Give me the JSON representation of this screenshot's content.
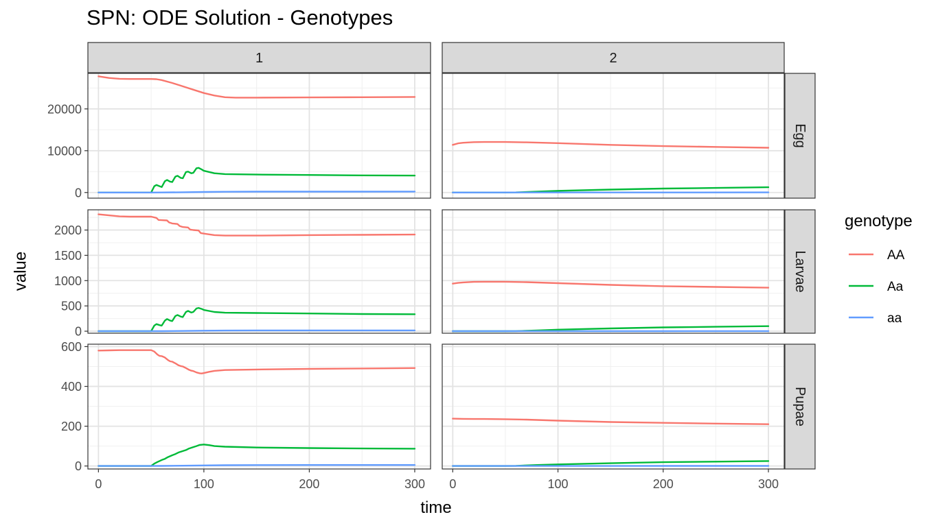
{
  "chart_data": {
    "type": "line",
    "title": "SPN: ODE Solution - Genotypes",
    "xlabel": "time",
    "ylabel": "value",
    "legend": {
      "title": "genotype",
      "position": "right",
      "entries": [
        {
          "name": "AA",
          "color": "#F8766D"
        },
        {
          "name": "Aa",
          "color": "#00BA38"
        },
        {
          "name": "aa",
          "color": "#619CFF"
        }
      ]
    },
    "facet_columns": [
      "1",
      "2"
    ],
    "facet_rows": [
      "Egg",
      "Larvae",
      "Pupae"
    ],
    "x": {
      "lim": [
        -10,
        315
      ],
      "ticks": [
        0,
        100,
        200,
        300
      ],
      "tick_labels": [
        "0",
        "100",
        "200",
        "300"
      ]
    },
    "rows": {
      "Egg": {
        "ylim": [
          -1350,
          28500
        ],
        "ticks": [
          0,
          10000,
          20000
        ],
        "tick_labels": [
          "0",
          "10000",
          "20000"
        ],
        "minor_ticks": [
          5000,
          15000,
          25000
        ]
      },
      "Larvae": {
        "ylim": [
          -40,
          2400
        ],
        "ticks": [
          0,
          500,
          1000,
          1500,
          2000
        ],
        "tick_labels": [
          "0",
          "500",
          "1000",
          "1500",
          "2000"
        ],
        "minor_ticks": [
          250,
          750,
          1250,
          1750,
          2250
        ]
      },
      "Pupae": {
        "ylim": [
          -15,
          612
        ],
        "ticks": [
          0,
          200,
          400,
          600
        ],
        "tick_labels": [
          "0",
          "200",
          "400",
          "600"
        ],
        "minor_ticks": [
          100,
          300,
          500
        ]
      }
    },
    "panels": [
      {
        "column": "1",
        "row": "Egg",
        "series": [
          {
            "name": "AA",
            "x": [
              0,
              10,
              20,
              30,
              40,
              50,
              55,
              60,
              70,
              80,
              90,
              100,
              110,
              120,
              130,
              150,
              200,
              250,
              300
            ],
            "y": [
              27800,
              27400,
              27200,
              27150,
              27150,
              27150,
              27100,
              26900,
              26200,
              25400,
              24600,
              23800,
              23200,
              22800,
              22700,
              22700,
              22750,
              22800,
              22850
            ]
          },
          {
            "name": "Aa",
            "x": [
              0,
              48,
              50,
              53,
              55,
              58,
              60,
              63,
              65,
              68,
              70,
              73,
              75,
              78,
              80,
              83,
              85,
              88,
              90,
              93,
              95,
              98,
              100,
              110,
              120,
              150,
              200,
              250,
              300
            ],
            "y": [
              0,
              0,
              0,
              1500,
              1800,
              1500,
              1300,
              2700,
              3000,
              2600,
              2500,
              3800,
              4000,
              3500,
              3400,
              4900,
              5000,
              4600,
              4700,
              5800,
              5900,
              5500,
              5200,
              4600,
              4400,
              4300,
              4200,
              4100,
              4050
            ]
          },
          {
            "name": "aa",
            "x": [
              0,
              50,
              60,
              80,
              100,
              120,
              150,
              200,
              250,
              300
            ],
            "y": [
              0,
              0,
              10,
              60,
              120,
              170,
              200,
              210,
              215,
              220
            ]
          }
        ]
      },
      {
        "column": "2",
        "row": "Egg",
        "series": [
          {
            "name": "AA",
            "x": [
              0,
              5,
              10,
              20,
              30,
              50,
              70,
              100,
              150,
              200,
              250,
              300
            ],
            "y": [
              11400,
              11750,
              11900,
              12050,
              12080,
              12080,
              12000,
              11800,
              11400,
              11100,
              10900,
              10700
            ]
          },
          {
            "name": "Aa",
            "x": [
              0,
              50,
              60,
              80,
              100,
              150,
              200,
              250,
              300
            ],
            "y": [
              0,
              0,
              20,
              200,
              400,
              700,
              950,
              1100,
              1250
            ]
          },
          {
            "name": "aa",
            "x": [
              0,
              100,
              200,
              300
            ],
            "y": [
              0,
              5,
              15,
              25
            ]
          }
        ]
      },
      {
        "column": "1",
        "row": "Larvae",
        "series": [
          {
            "name": "AA",
            "x": [
              0,
              10,
              20,
              30,
              40,
              50,
              55,
              57,
              60,
              65,
              67,
              70,
              75,
              77,
              80,
              85,
              87,
              90,
              95,
              97,
              100,
              110,
              120,
              150,
              200,
              250,
              300
            ],
            "y": [
              2310,
              2290,
              2270,
              2265,
              2265,
              2265,
              2240,
              2200,
              2195,
              2190,
              2150,
              2130,
              2120,
              2080,
              2060,
              2050,
              2010,
              2000,
              1990,
              1940,
              1930,
              1900,
              1890,
              1890,
              1900,
              1905,
              1910
            ]
          },
          {
            "name": "Aa",
            "x": [
              0,
              48,
              50,
              53,
              55,
              58,
              60,
              63,
              65,
              68,
              70,
              73,
              75,
              78,
              80,
              83,
              85,
              88,
              90,
              93,
              95,
              98,
              100,
              110,
              120,
              150,
              200,
              250,
              300
            ],
            "y": [
              0,
              0,
              0,
              110,
              140,
              120,
              110,
              210,
              240,
              210,
              200,
              300,
              320,
              290,
              280,
              380,
              400,
              370,
              380,
              450,
              460,
              440,
              420,
              380,
              365,
              360,
              350,
              340,
              335
            ]
          },
          {
            "name": "aa",
            "x": [
              0,
              50,
              60,
              80,
              100,
              120,
              150,
              200,
              250,
              300
            ],
            "y": [
              0,
              0,
              1,
              5,
              10,
              13,
              15,
              16,
              16,
              16
            ]
          }
        ]
      },
      {
        "column": "2",
        "row": "Larvae",
        "series": [
          {
            "name": "AA",
            "x": [
              0,
              5,
              10,
              20,
              30,
              50,
              70,
              100,
              150,
              200,
              250,
              300
            ],
            "y": [
              940,
              955,
              965,
              975,
              978,
              978,
              970,
              950,
              915,
              890,
              875,
              860
            ]
          },
          {
            "name": "Aa",
            "x": [
              0,
              50,
              60,
              80,
              100,
              150,
              200,
              250,
              300
            ],
            "y": [
              0,
              0,
              2,
              15,
              30,
              55,
              75,
              88,
              100
            ]
          },
          {
            "name": "aa",
            "x": [
              0,
              100,
              200,
              300
            ],
            "y": [
              0,
              0.5,
              1,
              2
            ]
          }
        ]
      },
      {
        "column": "1",
        "row": "Pupae",
        "series": [
          {
            "name": "AA",
            "x": [
              0,
              10,
              20,
              30,
              40,
              50,
              53,
              56,
              58,
              60,
              63,
              66,
              68,
              70,
              73,
              76,
              78,
              80,
              83,
              86,
              88,
              90,
              93,
              96,
              98,
              100,
              105,
              110,
              120,
              150,
              200,
              250,
              300
            ],
            "y": [
              580,
              581,
              582,
              582,
              582,
              582,
              575,
              560,
              553,
              552,
              545,
              532,
              526,
              524,
              516,
              506,
              502,
              500,
              492,
              483,
              479,
              477,
              470,
              466,
              465,
              467,
              473,
              478,
              482,
              485,
              488,
              490,
              492
            ]
          },
          {
            "name": "Aa",
            "x": [
              0,
              50,
              53,
              56,
              60,
              63,
              66,
              70,
              73,
              76,
              80,
              83,
              86,
              90,
              93,
              96,
              100,
              105,
              110,
              120,
              150,
              200,
              250,
              300
            ],
            "y": [
              0,
              0,
              12,
              20,
              30,
              36,
              45,
              54,
              60,
              68,
              75,
              80,
              88,
              95,
              100,
              106,
              108,
              105,
              100,
              97,
              93,
              90,
              88,
              87
            ]
          },
          {
            "name": "aa",
            "x": [
              0,
              50,
              60,
              80,
              100,
              120,
              150,
              200,
              250,
              300
            ],
            "y": [
              0,
              0,
              0.5,
              1.5,
              3,
              4,
              4.5,
              5,
              5,
              5
            ]
          }
        ]
      },
      {
        "column": "2",
        "row": "Pupae",
        "series": [
          {
            "name": "AA",
            "x": [
              0,
              10,
              20,
              30,
              50,
              70,
              100,
              150,
              200,
              250,
              300
            ],
            "y": [
              238,
              237,
              236,
              236,
              235,
              233,
              228,
              221,
              217,
              213,
              210
            ]
          },
          {
            "name": "Aa",
            "x": [
              0,
              50,
              60,
              80,
              100,
              150,
              200,
              250,
              300
            ],
            "y": [
              0,
              0,
              1,
              5,
              8,
              14,
              19,
              22,
              25
            ]
          },
          {
            "name": "aa",
            "x": [
              0,
              100,
              200,
              300
            ],
            "y": [
              0,
              0.2,
              0.4,
              0.6
            ]
          }
        ]
      }
    ]
  }
}
